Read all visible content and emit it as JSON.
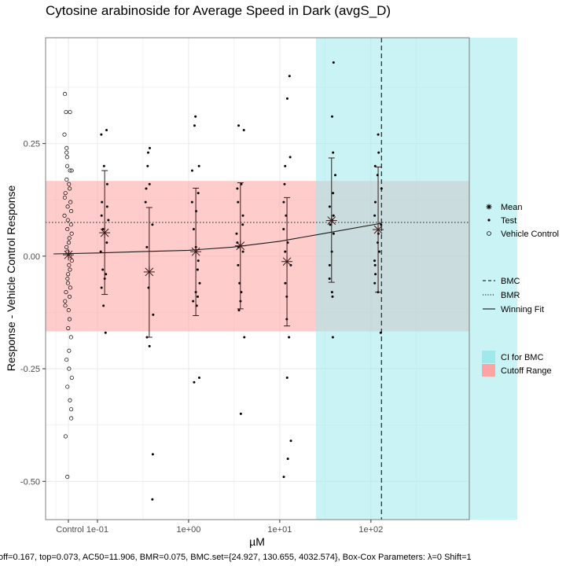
{
  "chart_data": {
    "type": "scatter",
    "title": "Cytosine arabinoside for Average Speed in Dark (avgS_D)",
    "xlabel": "µM",
    "ylabel": "Response - Vehicle Control Response",
    "x_scale": "log10",
    "x_ticks": [
      {
        "label": "Control",
        "value": "control"
      },
      {
        "label": "1e-01",
        "value": 0.1
      },
      {
        "label": "1e+00",
        "value": 1
      },
      {
        "label": "1e+01",
        "value": 10
      },
      {
        "label": "1e+02",
        "value": 100
      }
    ],
    "y_ticks": [
      {
        "label": "0.25",
        "value": 0.25
      },
      {
        "label": "0.00",
        "value": 0.0
      },
      {
        "label": "-0.25",
        "value": -0.25
      },
      {
        "label": "-0.50",
        "value": -0.5
      }
    ],
    "xlim": [
      0.027,
      1200
    ],
    "ylim": [
      -0.585,
      0.485
    ],
    "grid": true,
    "legend_placement": "right",
    "cutoff_range": [
      -0.167,
      0.167
    ],
    "ci_for_bmc": [
      24.927,
      4032.574
    ],
    "bmc": 130.655,
    "bmr": 0.075,
    "winning_fit": {
      "type": "hill",
      "top": 0.073,
      "ac50": 11.906,
      "x": [
        0.033,
        0.1,
        0.3,
        1,
        3,
        10,
        30,
        130
      ],
      "y": [
        0.005,
        0.007,
        0.01,
        0.013,
        0.02,
        0.033,
        0.05,
        0.073
      ]
    },
    "summary": [
      {
        "x": "control",
        "mean": 0.003,
        "sd_low": null,
        "sd_high": null
      },
      {
        "x": 0.12,
        "mean": 0.052,
        "sd_low": -0.085,
        "sd_high": 0.19
      },
      {
        "x": 0.37,
        "mean": -0.035,
        "sd_low": -0.18,
        "sd_high": 0.108
      },
      {
        "x": 1.2,
        "mean": 0.01,
        "sd_low": -0.132,
        "sd_high": 0.151
      },
      {
        "x": 3.7,
        "mean": 0.023,
        "sd_low": -0.117,
        "sd_high": 0.163
      },
      {
        "x": 12,
        "mean": -0.012,
        "sd_low": -0.155,
        "sd_high": 0.13
      },
      {
        "x": 37,
        "mean": 0.079,
        "sd_low": -0.058,
        "sd_high": 0.218
      },
      {
        "x": 120,
        "mean": 0.059,
        "sd_low": -0.08,
        "sd_high": 0.198
      }
    ],
    "test_points": [
      {
        "x": 0.12,
        "y": [
          0.28,
          0.27,
          0.2,
          0.16,
          0.12,
          0.11,
          0.09,
          0.08,
          0.06,
          0.03,
          0.01,
          -0.03,
          -0.04,
          -0.05,
          -0.07,
          -0.11,
          -0.17
        ]
      },
      {
        "x": 0.37,
        "y": [
          0.24,
          0.23,
          0.2,
          0.16,
          0.15,
          0.12,
          0.07,
          0.02,
          -0.07,
          -0.13,
          -0.18,
          -0.2,
          -0.44,
          -0.54
        ]
      },
      {
        "x": 1.2,
        "y": [
          0.31,
          0.29,
          0.2,
          0.19,
          0.14,
          0.12,
          0.1,
          0.06,
          0.02,
          -0.01,
          -0.03,
          -0.06,
          -0.08,
          -0.09,
          -0.1,
          -0.11,
          -0.27,
          -0.28
        ]
      },
      {
        "x": 3.7,
        "y": [
          0.29,
          0.28,
          0.16,
          0.15,
          0.12,
          0.09,
          0.07,
          0.05,
          0.03,
          0.02,
          0.01,
          -0.02,
          -0.06,
          -0.08,
          -0.1,
          -0.12,
          -0.18,
          -0.35
        ]
      },
      {
        "x": 12,
        "y": [
          0.4,
          0.35,
          0.22,
          0.2,
          0.16,
          0.12,
          0.09,
          0.06,
          0.03,
          0.01,
          -0.02,
          -0.06,
          -0.09,
          -0.14,
          -0.18,
          -0.27,
          -0.41,
          -0.45,
          -0.49
        ]
      },
      {
        "x": 37,
        "y": [
          0.43,
          0.31,
          0.23,
          0.18,
          0.14,
          0.11,
          0.09,
          0.08,
          0.07,
          0.05,
          0.01,
          -0.02,
          -0.05,
          -0.08,
          -0.09,
          -0.18
        ]
      },
      {
        "x": 120,
        "y": [
          0.27,
          0.23,
          0.2,
          0.18,
          0.15,
          0.12,
          0.09,
          0.07,
          0.05,
          0.03,
          0.01,
          -0.01,
          -0.02,
          -0.04,
          -0.06,
          -0.08,
          -0.17
        ]
      }
    ],
    "vehicle_control": [
      0.36,
      0.32,
      0.32,
      0.27,
      0.24,
      0.23,
      0.22,
      0.2,
      0.19,
      0.19,
      0.17,
      0.16,
      0.15,
      0.14,
      0.13,
      0.12,
      0.11,
      0.1,
      0.09,
      0.08,
      0.07,
      0.06,
      0.05,
      0.04,
      0.03,
      0.02,
      0.01,
      0.0,
      -0.01,
      -0.02,
      -0.03,
      -0.04,
      -0.05,
      -0.06,
      -0.07,
      -0.08,
      -0.09,
      -0.1,
      -0.11,
      -0.12,
      -0.14,
      -0.16,
      -0.18,
      -0.21,
      -0.23,
      -0.25,
      -0.27,
      -0.29,
      -0.32,
      -0.34,
      -0.36,
      -0.4,
      -0.49
    ],
    "legend": [
      {
        "label": "Mean",
        "symbol": "asterisk"
      },
      {
        "label": "Test",
        "symbol": "dot"
      },
      {
        "label": "Vehicle Control",
        "symbol": "open-circle"
      },
      {
        "label": "BMC",
        "symbol": "dashed-line"
      },
      {
        "label": "BMR",
        "symbol": "dotted-line"
      },
      {
        "label": "Winning Fit",
        "symbol": "solid-line"
      },
      {
        "label": "CI for BMC",
        "symbol": "fill",
        "color": "#9ee9ec"
      },
      {
        "label": "Cutoff Range",
        "symbol": "fill",
        "color": "#ffa3a3"
      }
    ],
    "colors": {
      "ci_band": "#9ee9ec",
      "cutoff_band": "#ffa3a3",
      "points": "#000000",
      "summary": "#3a1a1a",
      "panel_border": "#7f7f7f",
      "grid": "#ebebeb"
    },
    "caption": "off=0.167, top=0.073, AC50=11.906, BMR=0.075, BMC.set={24.927, 130.655, 4032.574}, Box-Cox Parameters: λ=0 Shift=1"
  }
}
